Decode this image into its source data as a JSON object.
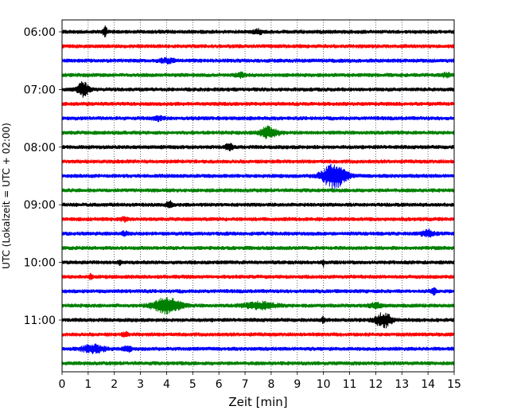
{
  "chart_data": {
    "type": "line",
    "title": "",
    "xlabel": "Zeit  [min]",
    "ylabel": "UTC (Lokalzeit = UTC + 02:00)",
    "xlim": [
      0,
      15
    ],
    "x_ticks": [
      "0",
      "1",
      "2",
      "3",
      "4",
      "5",
      "6",
      "7",
      "8",
      "9",
      "10",
      "11",
      "12",
      "13",
      "14",
      "15"
    ],
    "y_tick_labels": [
      "06:00",
      "07:00",
      "08:00",
      "09:00",
      "10:00",
      "11:00"
    ],
    "grid": "vertical dotted",
    "line_colors": [
      "#000000",
      "#ff0000",
      "#0000ff",
      "#008000"
    ],
    "series": [
      {
        "start": "06:00",
        "color": "#000000",
        "events": [
          {
            "t": 1.65,
            "amp": 0.55,
            "width": 0.15
          },
          {
            "t": 7.5,
            "amp": 0.25,
            "width": 0.3
          }
        ]
      },
      {
        "start": "06:15",
        "color": "#ff0000",
        "events": []
      },
      {
        "start": "06:30",
        "color": "#0000ff",
        "events": [
          {
            "t": 4.0,
            "amp": 0.2,
            "width": 0.6
          }
        ]
      },
      {
        "start": "06:45",
        "color": "#008000",
        "events": [
          {
            "t": 6.8,
            "amp": 0.25,
            "width": 0.3
          },
          {
            "t": 14.7,
            "amp": 0.2,
            "width": 0.3
          }
        ]
      },
      {
        "start": "07:00",
        "color": "#000000",
        "events": [
          {
            "t": 0.8,
            "amp": 0.75,
            "width": 0.45
          }
        ]
      },
      {
        "start": "07:15",
        "color": "#ff0000",
        "events": []
      },
      {
        "start": "07:30",
        "color": "#0000ff",
        "events": [
          {
            "t": 3.7,
            "amp": 0.2,
            "width": 0.4
          }
        ]
      },
      {
        "start": "07:45",
        "color": "#008000",
        "events": [
          {
            "t": 7.9,
            "amp": 0.6,
            "width": 0.7
          }
        ]
      },
      {
        "start": "08:00",
        "color": "#000000",
        "events": [
          {
            "t": 6.4,
            "amp": 0.3,
            "width": 0.3
          }
        ]
      },
      {
        "start": "08:15",
        "color": "#ff0000",
        "events": []
      },
      {
        "start": "08:30",
        "color": "#0000ff",
        "events": [
          {
            "t": 10.4,
            "amp": 1.35,
            "width": 0.9
          }
        ]
      },
      {
        "start": "08:45",
        "color": "#008000",
        "events": []
      },
      {
        "start": "09:00",
        "color": "#000000",
        "events": [
          {
            "t": 4.1,
            "amp": 0.35,
            "width": 0.25
          }
        ]
      },
      {
        "start": "09:15",
        "color": "#ff0000",
        "events": [
          {
            "t": 2.4,
            "amp": 0.2,
            "width": 0.3
          }
        ]
      },
      {
        "start": "09:30",
        "color": "#0000ff",
        "events": [
          {
            "t": 14.0,
            "amp": 0.35,
            "width": 0.5
          },
          {
            "t": 2.4,
            "amp": 0.2,
            "width": 0.2
          }
        ]
      },
      {
        "start": "09:45",
        "color": "#008000",
        "events": []
      },
      {
        "start": "10:00",
        "color": "#000000",
        "events": [
          {
            "t": 10.0,
            "amp": 0.4,
            "width": 0.08
          },
          {
            "t": 2.2,
            "amp": 0.2,
            "width": 0.15
          }
        ]
      },
      {
        "start": "10:15",
        "color": "#ff0000",
        "events": [
          {
            "t": 1.1,
            "amp": 0.25,
            "width": 0.2
          }
        ]
      },
      {
        "start": "10:30",
        "color": "#0000ff",
        "events": [
          {
            "t": 14.2,
            "amp": 0.3,
            "width": 0.25
          }
        ]
      },
      {
        "start": "10:45",
        "color": "#008000",
        "events": [
          {
            "t": 4.0,
            "amp": 0.9,
            "width": 1.0
          },
          {
            "t": 7.6,
            "amp": 0.35,
            "width": 1.2
          },
          {
            "t": 12.0,
            "amp": 0.25,
            "width": 0.5
          }
        ]
      },
      {
        "start": "11:00",
        "color": "#000000",
        "events": [
          {
            "t": 12.3,
            "amp": 0.8,
            "width": 0.6
          },
          {
            "t": 10.0,
            "amp": 0.35,
            "width": 0.12
          }
        ]
      },
      {
        "start": "11:15",
        "color": "#ff0000",
        "events": [
          {
            "t": 2.4,
            "amp": 0.2,
            "width": 0.2
          }
        ]
      },
      {
        "start": "11:30",
        "color": "#0000ff",
        "events": [
          {
            "t": 1.2,
            "amp": 0.45,
            "width": 0.8
          },
          {
            "t": 2.5,
            "amp": 0.25,
            "width": 0.3
          }
        ]
      },
      {
        "start": "11:45",
        "color": "#008000",
        "events": []
      }
    ]
  }
}
